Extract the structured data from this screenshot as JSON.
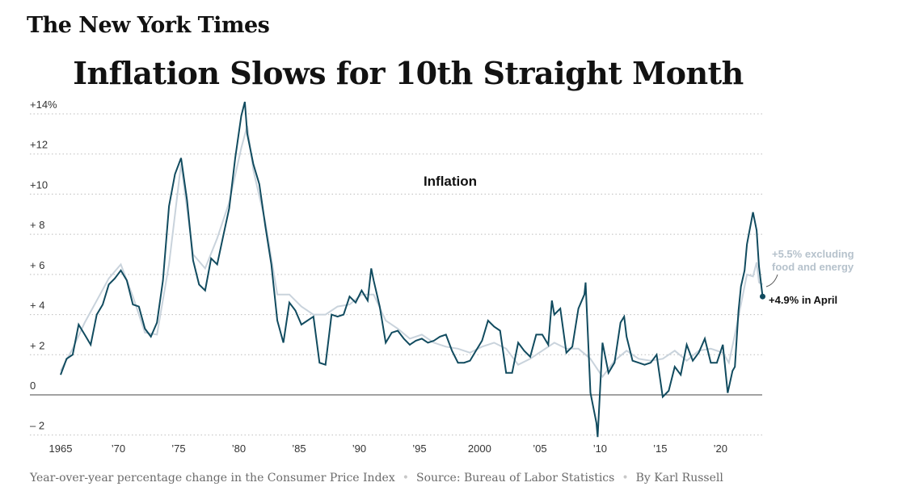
{
  "masthead": "The New York Times",
  "headline": "Inflation Slows for 10th Straight Month",
  "footer": {
    "description": "Year-over-year percentage change in the Consumer Price Index",
    "source": "Source: Bureau of Labor Statistics",
    "byline": "By Karl Russell"
  },
  "colors": {
    "cpi": "#114b5f",
    "core": "#c9d3dc",
    "core_label": "#b6c2cc",
    "grid": "#bdbdbd"
  },
  "chart_data": {
    "type": "line",
    "title": "Inflation",
    "xlabel": "",
    "ylabel": "",
    "xlim": [
      1965,
      2023.6
    ],
    "ylim": [
      -2.5,
      14.6
    ],
    "yticks": [
      -2,
      0,
      2,
      4,
      6,
      8,
      10,
      12,
      14
    ],
    "ytick_labels": [
      "– 2",
      "0",
      "+ 2",
      "+ 4",
      "+ 6",
      "+ 8",
      "+10",
      "+12",
      "+14%"
    ],
    "xticks": [
      1965,
      1970,
      1975,
      1980,
      1985,
      1990,
      1995,
      2000,
      2005,
      2010,
      2015,
      2020
    ],
    "xtick_labels": [
      "1965",
      "’70",
      "’75",
      "’80",
      "’85",
      "’90",
      "’95",
      "2000",
      "’05",
      "’10",
      "’15",
      "’20"
    ],
    "grid": "horizontal dotted",
    "annotations": {
      "headline_label": "+4.9% in April",
      "core_label_line1": "+5.5% excluding",
      "core_label_line2": "food and energy"
    },
    "series": [
      {
        "key": "cpi",
        "x": [
          1965.0,
          1965.5,
          1966.0,
          1966.5,
          1967.0,
          1967.5,
          1968.0,
          1968.5,
          1969.0,
          1969.5,
          1970.0,
          1970.5,
          1971.0,
          1971.5,
          1972.0,
          1972.5,
          1973.0,
          1973.5,
          1974.0,
          1974.5,
          1975.0,
          1975.5,
          1976.0,
          1976.5,
          1977.0,
          1977.5,
          1978.0,
          1978.5,
          1979.0,
          1979.5,
          1980.0,
          1980.3,
          1980.5,
          1981.0,
          1981.5,
          1982.0,
          1982.5,
          1983.0,
          1983.5,
          1984.0,
          1984.5,
          1985.0,
          1985.5,
          1986.0,
          1986.5,
          1987.0,
          1987.5,
          1988.0,
          1988.5,
          1989.0,
          1989.5,
          1990.0,
          1990.5,
          1990.8,
          1991.0,
          1991.5,
          1992.0,
          1992.5,
          1993.0,
          1993.5,
          1994.0,
          1994.5,
          1995.0,
          1995.5,
          1996.0,
          1996.5,
          1997.0,
          1997.5,
          1998.0,
          1998.5,
          1999.0,
          1999.5,
          2000.0,
          2000.5,
          2001.0,
          2001.5,
          2002.0,
          2002.5,
          2003.0,
          2003.5,
          2004.0,
          2004.5,
          2005.0,
          2005.5,
          2005.8,
          2006.0,
          2006.5,
          2007.0,
          2007.5,
          2008.0,
          2008.5,
          2008.6,
          2009.0,
          2009.5,
          2009.6,
          2010.0,
          2010.5,
          2011.0,
          2011.5,
          2011.8,
          2012.0,
          2012.5,
          2013.0,
          2013.5,
          2014.0,
          2014.5,
          2015.0,
          2015.5,
          2016.0,
          2016.5,
          2017.0,
          2017.5,
          2018.0,
          2018.5,
          2019.0,
          2019.5,
          2020.0,
          2020.4,
          2020.8,
          2021.0,
          2021.3,
          2021.5,
          2021.8,
          2022.0,
          2022.5,
          2022.8,
          2023.0,
          2023.3
        ],
        "y": [
          1.0,
          1.8,
          2.0,
          3.5,
          3.0,
          2.5,
          4.0,
          4.5,
          5.5,
          5.8,
          6.2,
          5.7,
          4.5,
          4.4,
          3.3,
          2.9,
          3.6,
          5.7,
          9.4,
          11.0,
          11.8,
          9.7,
          6.7,
          5.5,
          5.2,
          6.8,
          6.5,
          7.9,
          9.3,
          11.8,
          13.9,
          14.6,
          13.0,
          11.5,
          10.5,
          8.4,
          6.5,
          3.7,
          2.6,
          4.6,
          4.2,
          3.5,
          3.7,
          3.9,
          1.6,
          1.5,
          4.0,
          3.9,
          4.0,
          4.9,
          4.6,
          5.2,
          4.7,
          6.3,
          5.7,
          4.4,
          2.6,
          3.1,
          3.2,
          2.8,
          2.5,
          2.7,
          2.8,
          2.6,
          2.7,
          2.9,
          3.0,
          2.2,
          1.6,
          1.6,
          1.7,
          2.2,
          2.7,
          3.7,
          3.4,
          3.2,
          1.1,
          1.1,
          2.6,
          2.2,
          1.9,
          3.0,
          3.0,
          2.5,
          4.7,
          4.0,
          4.3,
          2.1,
          2.4,
          4.3,
          5.0,
          5.6,
          0.1,
          -1.4,
          -2.1,
          2.6,
          1.1,
          1.6,
          3.6,
          3.9,
          2.9,
          1.7,
          1.6,
          1.5,
          1.6,
          2.0,
          -0.1,
          0.2,
          1.4,
          1.0,
          2.5,
          1.7,
          2.1,
          2.8,
          1.6,
          1.6,
          2.5,
          0.1,
          1.2,
          1.4,
          4.2,
          5.4,
          6.2,
          7.5,
          9.1,
          8.2,
          6.4,
          4.9
        ]
      },
      {
        "key": "core",
        "x": [
          1965.0,
          1966.0,
          1967.0,
          1968.0,
          1969.0,
          1970.0,
          1971.0,
          1972.0,
          1973.0,
          1974.0,
          1975.0,
          1976.0,
          1977.0,
          1978.0,
          1979.0,
          1980.0,
          1980.5,
          1981.0,
          1982.0,
          1983.0,
          1984.0,
          1985.0,
          1986.0,
          1987.0,
          1988.0,
          1989.0,
          1990.0,
          1991.0,
          1992.0,
          1993.0,
          1994.0,
          1995.0,
          1996.0,
          1997.0,
          1998.0,
          1999.0,
          2000.0,
          2001.0,
          2002.0,
          2003.0,
          2004.0,
          2005.0,
          2006.0,
          2007.0,
          2008.0,
          2009.0,
          2010.0,
          2011.0,
          2012.0,
          2013.0,
          2014.0,
          2015.0,
          2016.0,
          2017.0,
          2018.0,
          2019.0,
          2020.0,
          2020.5,
          2021.0,
          2021.5,
          2022.0,
          2022.5,
          2022.8,
          2023.0,
          2023.3
        ],
        "y": [
          1.2,
          2.3,
          3.6,
          4.7,
          5.8,
          6.5,
          4.9,
          3.1,
          3.0,
          6.5,
          11.5,
          7.0,
          6.3,
          7.8,
          9.6,
          12.3,
          13.4,
          11.2,
          8.6,
          5.0,
          5.0,
          4.4,
          4.0,
          4.0,
          4.4,
          4.5,
          5.0,
          5.0,
          3.7,
          3.3,
          2.8,
          3.0,
          2.6,
          2.4,
          2.3,
          2.1,
          2.4,
          2.6,
          2.3,
          1.5,
          1.8,
          2.2,
          2.6,
          2.3,
          2.3,
          1.8,
          0.9,
          1.7,
          2.2,
          1.8,
          1.7,
          1.8,
          2.2,
          1.7,
          2.2,
          2.3,
          2.1,
          1.6,
          3.0,
          4.5,
          6.0,
          5.9,
          6.6,
          5.6,
          5.5
        ]
      }
    ]
  }
}
